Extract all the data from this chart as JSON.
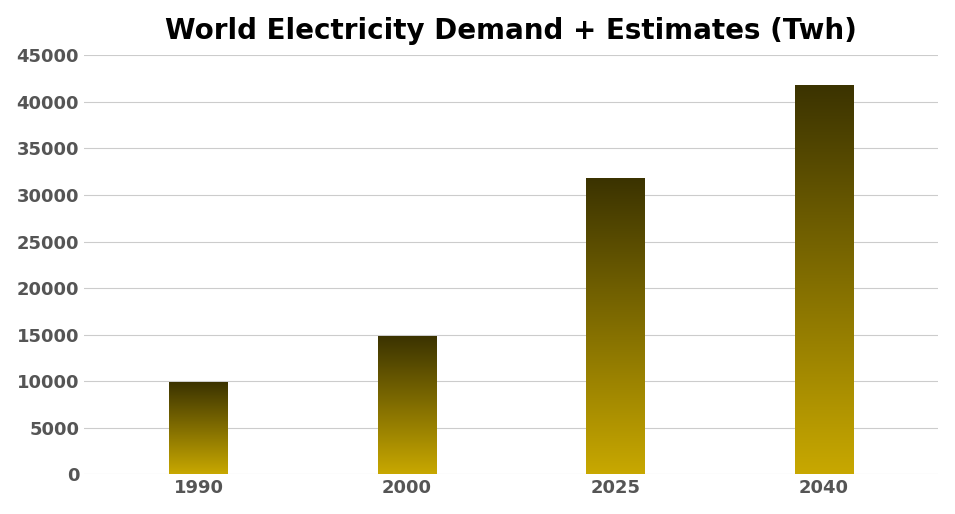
{
  "title": "World Electricity Demand + Estimates (Twh)",
  "categories": [
    "1990",
    "2000",
    "2025",
    "2040"
  ],
  "values": [
    9800,
    14800,
    31700,
    41700
  ],
  "ylim": [
    0,
    45000
  ],
  "yticks": [
    0,
    5000,
    10000,
    15000,
    20000,
    25000,
    30000,
    35000,
    40000,
    45000
  ],
  "color_top": "#3b3300",
  "color_bottom": "#c8a800",
  "background_color": "#ffffff",
  "title_fontsize": 20,
  "tick_fontsize": 13,
  "tick_color": "#555555",
  "bar_width": 0.28,
  "grid_color": "#cccccc",
  "x_positions": [
    0,
    1,
    2,
    3
  ],
  "xlim": [
    -0.55,
    3.55
  ]
}
